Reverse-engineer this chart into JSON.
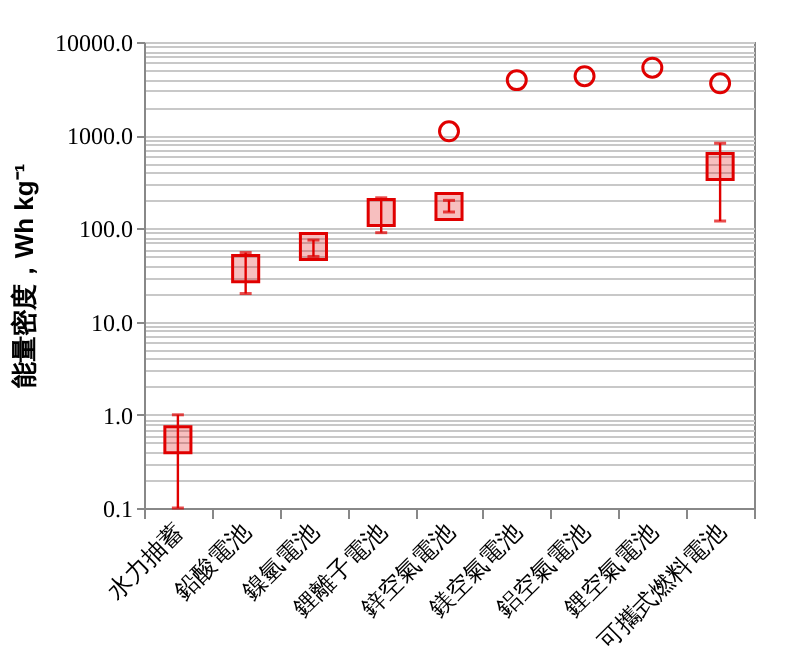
{
  "chart_data": {
    "type": "scatter",
    "ylabel": "能量密度，Wh kg⁻¹",
    "categories": [
      "水力抽蓄",
      "鉛酸電池",
      "鎳氫電池",
      "鋰離子電池",
      "鋅空氣電池",
      "鎂空氣電池",
      "鋁空氣電池",
      "鋰空氣電池",
      "可攜式燃料電池"
    ],
    "series": [
      {
        "marker": "square",
        "color": "#e00000",
        "values": [
          0.54,
          37,
          64,
          148,
          172,
          null,
          null,
          null,
          461
        ],
        "errors": [
          [
            0.1,
            1.0
          ],
          [
            20,
            55
          ],
          [
            50,
            75
          ],
          [
            90,
            213
          ],
          [
            150,
            200
          ],
          null,
          null,
          null,
          [
            120,
            820
          ]
        ]
      },
      {
        "marker": "circle",
        "color": "#e00000",
        "values": [
          null,
          null,
          null,
          null,
          1100,
          3900,
          4300,
          5300,
          3600
        ]
      }
    ],
    "log": "y",
    "ylim": [
      0.1,
      10000
    ],
    "yticks": [
      {
        "value": 0.1,
        "label": "0.1"
      },
      {
        "value": 0.2,
        "label": null
      },
      {
        "value": 0.3,
        "label": null
      },
      {
        "value": 0.4,
        "label": null
      },
      {
        "value": 0.5,
        "label": null
      },
      {
        "value": 0.6,
        "label": null
      },
      {
        "value": 0.7,
        "label": null
      },
      {
        "value": 0.8,
        "label": null
      },
      {
        "value": 0.9,
        "label": null
      },
      {
        "value": 1,
        "label": "1.0"
      },
      {
        "value": 2,
        "label": null
      },
      {
        "value": 3,
        "label": null
      },
      {
        "value": 4,
        "label": null
      },
      {
        "value": 5,
        "label": null
      },
      {
        "value": 6,
        "label": null
      },
      {
        "value": 7,
        "label": null
      },
      {
        "value": 8,
        "label": null
      },
      {
        "value": 9,
        "label": null
      },
      {
        "value": 10,
        "label": "10.0"
      },
      {
        "value": 20,
        "label": null
      },
      {
        "value": 30,
        "label": null
      },
      {
        "value": 40,
        "label": null
      },
      {
        "value": 50,
        "label": null
      },
      {
        "value": 60,
        "label": null
      },
      {
        "value": 70,
        "label": null
      },
      {
        "value": 80,
        "label": null
      },
      {
        "value": 90,
        "label": null
      },
      {
        "value": 100,
        "label": "100.0"
      },
      {
        "value": 200,
        "label": null
      },
      {
        "value": 300,
        "label": null
      },
      {
        "value": 400,
        "label": null
      },
      {
        "value": 500,
        "label": null
      },
      {
        "value": 600,
        "label": null
      },
      {
        "value": 700,
        "label": null
      },
      {
        "value": 800,
        "label": null
      },
      {
        "value": 900,
        "label": null
      },
      {
        "value": 1000,
        "label": "1000.0"
      },
      {
        "value": 2000,
        "label": null
      },
      {
        "value": 3000,
        "label": null
      },
      {
        "value": 4000,
        "label": null
      },
      {
        "value": 5000,
        "label": null
      },
      {
        "value": 6000,
        "label": null
      },
      {
        "value": 7000,
        "label": null
      },
      {
        "value": 8000,
        "label": null
      },
      {
        "value": 9000,
        "label": null
      },
      {
        "value": 10000,
        "label": "10000.0"
      }
    ],
    "grid": "y"
  }
}
